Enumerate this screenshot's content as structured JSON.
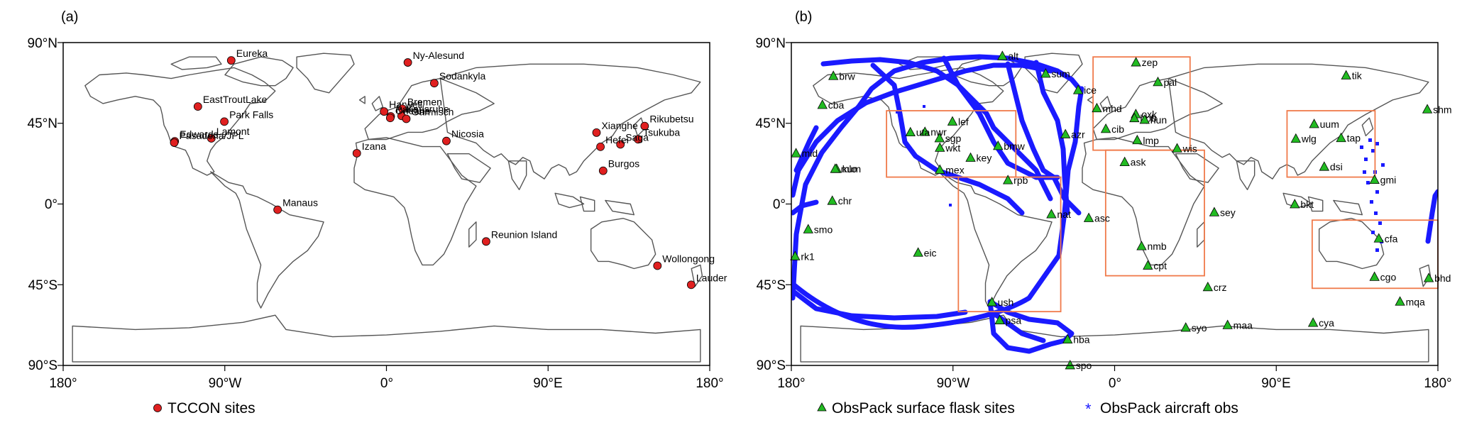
{
  "panels": [
    {
      "id": "a",
      "tag": "(a)",
      "lat_ticks": [
        "90°N",
        "45°N",
        "0°",
        "45°S",
        "90°S"
      ],
      "lon_ticks": [
        "180°",
        "90°W",
        "0°",
        "90°E",
        "180°"
      ],
      "legend": [
        {
          "symbol": "circle",
          "color": "#e02020",
          "label": "TCCON sites"
        }
      ],
      "tccon_sites": [
        {
          "name": "Eureka",
          "lat": 80.05,
          "lon": -86.42
        },
        {
          "name": "Ny-Alesund",
          "lat": 78.9,
          "lon": 11.9
        },
        {
          "name": "Sodankyla",
          "lat": 67.37,
          "lon": 26.63
        },
        {
          "name": "EastTroutLake",
          "lat": 54.35,
          "lon": -104.99
        },
        {
          "name": "Harwell",
          "lat": 51.57,
          "lon": -1.32
        },
        {
          "name": "Bremen",
          "lat": 53.1,
          "lon": 8.85
        },
        {
          "name": "Karlsruhe",
          "lat": 49.1,
          "lon": 8.44
        },
        {
          "name": "Paris",
          "lat": 48.85,
          "lon": 2.36
        },
        {
          "name": "Orleans",
          "lat": 47.97,
          "lon": 2.11
        },
        {
          "name": "Garmisch",
          "lat": 47.48,
          "lon": 11.06
        },
        {
          "name": "Park Falls",
          "lat": 45.94,
          "lon": -90.27
        },
        {
          "name": "Rikubetsu",
          "lat": 43.46,
          "lon": 143.77
        },
        {
          "name": "Xianghe",
          "lat": 39.8,
          "lon": 116.96
        },
        {
          "name": "Lamont",
          "lat": 36.6,
          "lon": -97.49
        },
        {
          "name": "Tsukuba",
          "lat": 36.05,
          "lon": 140.12
        },
        {
          "name": "Edwards",
          "lat": 34.96,
          "lon": -117.88
        },
        {
          "name": "Nicosia",
          "lat": 35.14,
          "lon": 33.38
        },
        {
          "name": "Pasadena/JPL",
          "lat": 34.2,
          "lon": -118.17
        },
        {
          "name": "Saga",
          "lat": 33.24,
          "lon": 130.29
        },
        {
          "name": "Hefei",
          "lat": 31.9,
          "lon": 119.17
        },
        {
          "name": "Izana",
          "lat": 28.3,
          "lon": -16.5
        },
        {
          "name": "Burgos",
          "lat": 18.53,
          "lon": 120.65
        },
        {
          "name": "Manaus",
          "lat": -3.21,
          "lon": -60.6
        },
        {
          "name": "Reunion Island",
          "lat": -20.9,
          "lon": 55.49
        },
        {
          "name": "Wollongong",
          "lat": -34.41,
          "lon": 150.88
        },
        {
          "name": "Lauder",
          "lat": -45.04,
          "lon": 169.68
        }
      ]
    },
    {
      "id": "b",
      "tag": "(b)",
      "lat_ticks": [
        "90°N",
        "45°N",
        "0°",
        "45°S",
        "90°S"
      ],
      "lon_ticks": [
        "180°",
        "90°W",
        "0°",
        "90°E",
        "180°"
      ],
      "legend": [
        {
          "symbol": "triangle",
          "color": "#22bb22",
          "label": "ObsPack surface flask sites"
        },
        {
          "symbol": "star",
          "color": "#1a1aff",
          "label": "ObsPack aircraft obs"
        }
      ],
      "flask_sites": [
        {
          "name": "alt",
          "lat": 82.4,
          "lon": -62.5
        },
        {
          "name": "zep",
          "lat": 78.9,
          "lon": 11.9
        },
        {
          "name": "sum",
          "lat": 72.6,
          "lon": -38.4
        },
        {
          "name": "tik",
          "lat": 71.6,
          "lon": 128.9
        },
        {
          "name": "brw",
          "lat": 71.3,
          "lon": -156.6
        },
        {
          "name": "pal",
          "lat": 67.9,
          "lon": 24.1
        },
        {
          "name": "ice",
          "lat": 63.4,
          "lon": -20.3
        },
        {
          "name": "cba",
          "lat": 55.2,
          "lon": -162.7
        },
        {
          "name": "mhd",
          "lat": 53.3,
          "lon": -9.9
        },
        {
          "name": "shm",
          "lat": 52.7,
          "lon": 174.1
        },
        {
          "name": "oxk",
          "lat": 50.0,
          "lon": 11.8
        },
        {
          "name": "hpb",
          "lat": 47.8,
          "lon": 11.0
        },
        {
          "name": "hun",
          "lat": 46.9,
          "lon": 16.7
        },
        {
          "name": "uum",
          "lat": 44.5,
          "lon": 111.1
        },
        {
          "name": "nwr",
          "lat": 40.1,
          "lon": -105.6
        },
        {
          "name": "cib",
          "lat": 41.8,
          "lon": -4.9
        },
        {
          "name": "azr",
          "lat": 38.8,
          "lon": -27.4
        },
        {
          "name": "lef",
          "lat": 45.9,
          "lon": -90.3
        },
        {
          "name": "wlg",
          "lat": 36.3,
          "lon": 100.9
        },
        {
          "name": "tap",
          "lat": 36.7,
          "lon": 126.1
        },
        {
          "name": "sgp",
          "lat": 36.6,
          "lon": -97.5
        },
        {
          "name": "uta",
          "lat": 39.9,
          "lon": -113.7
        },
        {
          "name": "lmp",
          "lat": 35.5,
          "lon": 12.6
        },
        {
          "name": "bmw",
          "lat": 32.3,
          "lon": -64.9
        },
        {
          "name": "wis",
          "lat": 30.9,
          "lon": 34.8
        },
        {
          "name": "key",
          "lat": 25.7,
          "lon": -80.2
        },
        {
          "name": "mid",
          "lat": 28.2,
          "lon": -177.4
        },
        {
          "name": "ask",
          "lat": 23.3,
          "lon": 5.6
        },
        {
          "name": "wkt",
          "lat": 31.3,
          "lon": -97.3
        },
        {
          "name": "mex",
          "lat": 19.0,
          "lon": -97.3
        },
        {
          "name": "kum",
          "lat": 19.5,
          "lon": -154.8
        },
        {
          "name": "mlo",
          "lat": 19.5,
          "lon": -155.6
        },
        {
          "name": "dsi",
          "lat": 20.7,
          "lon": 116.7
        },
        {
          "name": "gmi",
          "lat": 13.4,
          "lon": 144.7
        },
        {
          "name": "rpb",
          "lat": 13.2,
          "lon": -59.4
        },
        {
          "name": "chr",
          "lat": 1.7,
          "lon": -157.2
        },
        {
          "name": "bkt",
          "lat": -0.2,
          "lon": 100.3
        },
        {
          "name": "sey",
          "lat": -4.7,
          "lon": 55.5
        },
        {
          "name": "nat",
          "lat": -5.8,
          "lon": -35.2
        },
        {
          "name": "asc",
          "lat": -7.9,
          "lon": -14.4
        },
        {
          "name": "smo",
          "lat": -14.2,
          "lon": -170.6
        },
        {
          "name": "cfa",
          "lat": -19.3,
          "lon": 147.1
        },
        {
          "name": "nmb",
          "lat": -23.6,
          "lon": 15.0
        },
        {
          "name": "eic",
          "lat": -27.2,
          "lon": -109.4
        },
        {
          "name": "rk1",
          "lat": -29.2,
          "lon": -177.9
        },
        {
          "name": "cpt",
          "lat": -34.4,
          "lon": 18.5
        },
        {
          "name": "cgo",
          "lat": -40.7,
          "lon": 144.7
        },
        {
          "name": "bhd",
          "lat": -41.4,
          "lon": 174.9
        },
        {
          "name": "crz",
          "lat": -46.4,
          "lon": 51.9
        },
        {
          "name": "mqa",
          "lat": -54.5,
          "lon": 158.9
        },
        {
          "name": "ush",
          "lat": -54.8,
          "lon": -68.3
        },
        {
          "name": "psa",
          "lat": -64.9,
          "lon": -64.0
        },
        {
          "name": "syo",
          "lat": -69.0,
          "lon": 39.6
        },
        {
          "name": "maa",
          "lat": -67.6,
          "lon": 62.9
        },
        {
          "name": "cya",
          "lat": -66.3,
          "lon": 110.5
        },
        {
          "name": "hba",
          "lat": -75.6,
          "lon": -26.2
        },
        {
          "name": "spo",
          "lat": -89.98,
          "lon": -24.8
        }
      ],
      "regions": [
        {
          "name": "north-america-box",
          "lat": [
            15,
            52
          ],
          "lon": [
            -127,
            -55
          ]
        },
        {
          "name": "south-america-box",
          "lat": [
            -60,
            15
          ],
          "lon": [
            -87,
            -30
          ]
        },
        {
          "name": "europe-box",
          "lat": [
            30,
            82
          ],
          "lon": [
            -12,
            42
          ]
        },
        {
          "name": "africa-box",
          "lat": [
            -40,
            30
          ],
          "lon": [
            -5,
            50
          ]
        },
        {
          "name": "asia-box",
          "lat": [
            15,
            52
          ],
          "lon": [
            96,
            145
          ]
        },
        {
          "name": "australia-box",
          "lat": [
            -47,
            -9
          ],
          "lon": [
            110,
            180
          ]
        }
      ]
    }
  ]
}
